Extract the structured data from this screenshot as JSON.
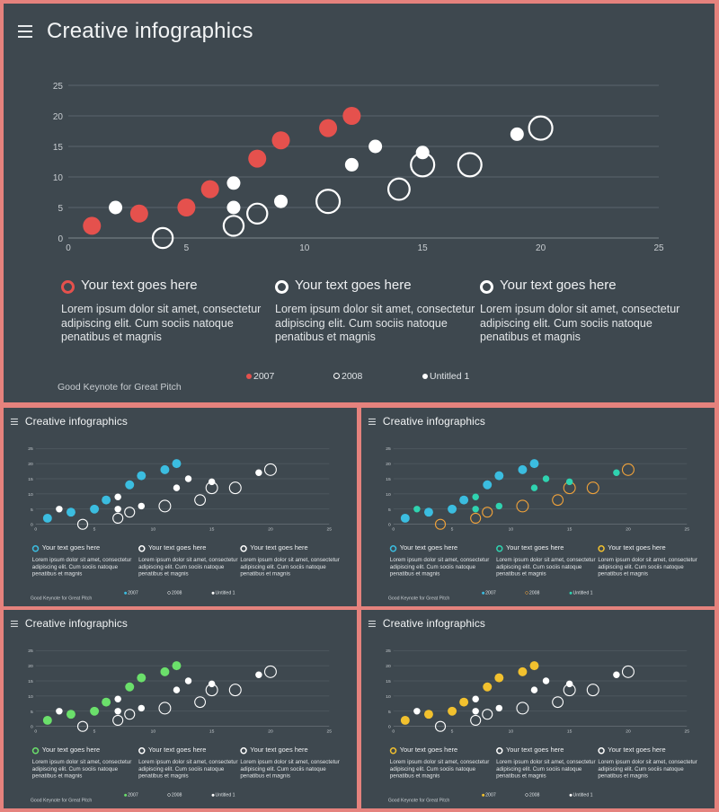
{
  "title": "Creative infographics",
  "footer": "Good Keynote for Great Pitch",
  "text_sections": [
    {
      "heading": "Your text goes here",
      "body": "Lorem ipsum dolor sit amet, consectetur adipiscing elit. Cum sociis natoque penatibus et magnis"
    },
    {
      "heading": "Your text goes here",
      "body": "Lorem ipsum dolor sit amet, consectetur adipiscing elit. Cum sociis natoque penatibus et magnis"
    },
    {
      "heading": "Your text goes here",
      "body": "Lorem ipsum dolor sit amet, consectetur adipiscing elit. Cum sociis natoque penatibus et magnis"
    }
  ],
  "themes": [
    {
      "accent": "#e5514d",
      "series_colors": [
        "#e5514d",
        "#ffffff",
        "#ffffff"
      ],
      "marker_colors": [
        "#e5514d",
        "#ffffff",
        "#ffffff"
      ]
    },
    {
      "accent": "#3bbde0",
      "series_colors": [
        "#3bbde0",
        "#ffffff",
        "#ffffff"
      ],
      "marker_colors": [
        "#3bbde0",
        "#ffffff",
        "#ffffff"
      ]
    },
    {
      "accent": "#3bbde0",
      "series_colors": [
        "#3bbde0",
        "#f2a33a",
        "#2fd3b0"
      ],
      "marker_colors": [
        "#3bbde0",
        "#2fd3b0",
        "#f2c12e"
      ]
    },
    {
      "accent": "#6be06b",
      "series_colors": [
        "#6be06b",
        "#ffffff",
        "#ffffff"
      ],
      "marker_colors": [
        "#6be06b",
        "#ffffff",
        "#ffffff"
      ]
    },
    {
      "accent": "#f2c12e",
      "series_colors": [
        "#f2c12e",
        "#ffffff",
        "#ffffff"
      ],
      "marker_colors": [
        "#f2c12e",
        "#ffffff",
        "#ffffff"
      ]
    }
  ],
  "chart_data": {
    "type": "scatter",
    "xlim": [
      0,
      25
    ],
    "ylim": [
      0,
      25
    ],
    "xticks": [
      "0",
      "5",
      "10",
      "15",
      "20",
      "25"
    ],
    "yticks": [
      "0",
      "5",
      "10",
      "15",
      "20",
      "25"
    ],
    "grid": true,
    "legend_position": "bottom",
    "series": [
      {
        "name": "2007",
        "style": "filled-large",
        "points": [
          [
            1,
            2
          ],
          [
            3,
            4
          ],
          [
            5,
            5
          ],
          [
            6,
            8
          ],
          [
            8,
            13
          ],
          [
            9,
            16
          ],
          [
            11,
            18
          ],
          [
            12,
            20
          ]
        ]
      },
      {
        "name": "2008",
        "style": "hollow-bubble",
        "points": [
          [
            4,
            0,
            3
          ],
          [
            7,
            2,
            3
          ],
          [
            8,
            4,
            3
          ],
          [
            11,
            6,
            3.5
          ],
          [
            14,
            8,
            3.2
          ],
          [
            15,
            12,
            3.5
          ],
          [
            17,
            12,
            3.5
          ],
          [
            20,
            18,
            3.5
          ]
        ]
      },
      {
        "name": "Untitled 1",
        "style": "filled-small",
        "points": [
          [
            2,
            5
          ],
          [
            7,
            5
          ],
          [
            7,
            9
          ],
          [
            9,
            6
          ],
          [
            12,
            12
          ],
          [
            13,
            15
          ],
          [
            15,
            14
          ],
          [
            19,
            17
          ]
        ]
      }
    ]
  }
}
